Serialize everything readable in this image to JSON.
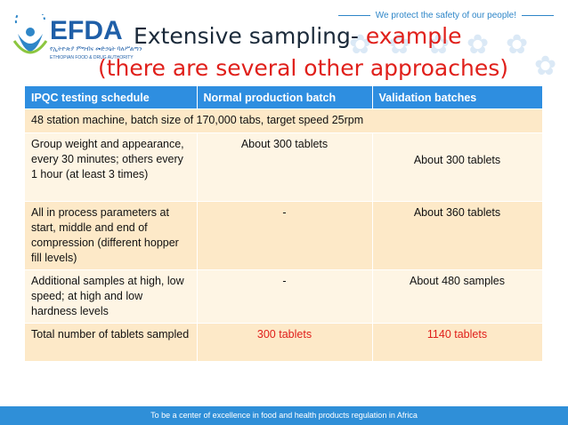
{
  "header": {
    "tagline": "We protect the safety of our people!",
    "logo": {
      "wordmark": "EFDA",
      "amharic": "የኢትዮጵያ ምግብና መድኃኒት ባለሥልጣን",
      "english": "ETHIOPIAN FOOD & DRUG AUTHORITY"
    },
    "title_main": "Extensive sampling- ",
    "title_accent": "example",
    "subtitle": "(there are several other approaches)"
  },
  "table": {
    "headers": [
      "IPQC testing schedule",
      "Normal production batch",
      "Validation batches"
    ],
    "intro_row": "48 station machine, batch size of 170,000 tabs, target speed 25rpm",
    "rows": [
      {
        "schedule": "Group weight and appearance, every 30 minutes; others every 1 hour (at least 3 times)",
        "normal": "About 300 tablets",
        "validation": "About 300 tablets"
      },
      {
        "schedule": "All in process parameters at start, middle and end of compression (different hopper fill levels)",
        "normal": "-",
        "validation": "About 360 tablets"
      },
      {
        "schedule": "Additional samples at high, low speed; at high and low hardness levels",
        "normal": "-",
        "validation": "About 480 samples"
      },
      {
        "schedule": "Total number of tablets sampled",
        "normal": "300 tablets",
        "validation": "1140 tablets"
      }
    ]
  },
  "footer": {
    "text": "To be a center of excellence in food and health products regulation in Africa"
  },
  "colors": {
    "accent_blue": "#2e8ee0",
    "accent_red": "#e0201b",
    "row_dark": "#fde9c8",
    "row_light": "#fef5e4"
  }
}
